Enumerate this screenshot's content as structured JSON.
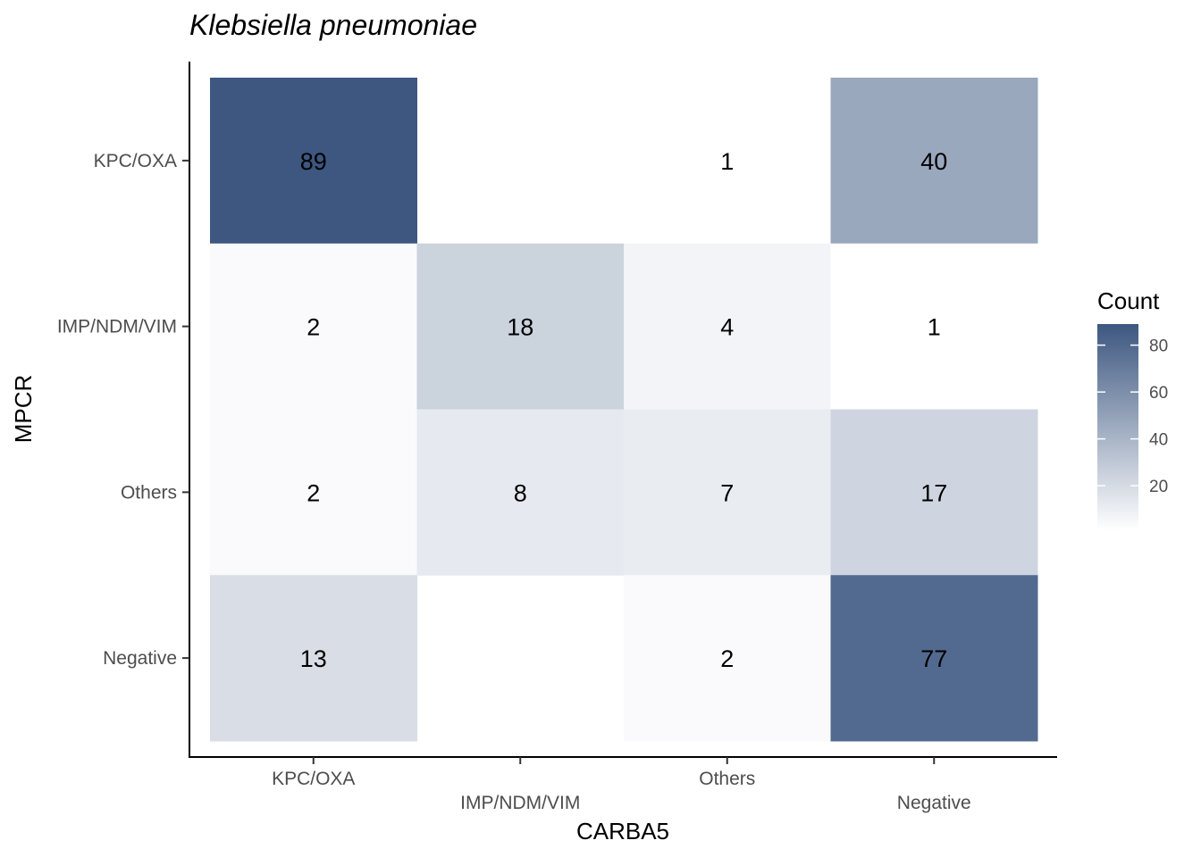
{
  "chart_data": {
    "type": "heatmap",
    "title": "Klebsiella pneumoniae",
    "xlabel": "CARBA5",
    "ylabel": "MPCR",
    "x_categories": [
      "KPC/OXA",
      "IMP/NDM/VIM",
      "Others",
      "Negative"
    ],
    "y_categories": [
      "KPC/OXA",
      "IMP/NDM/VIM",
      "Others",
      "Negative"
    ],
    "cells": [
      {
        "x": "KPC/OXA",
        "y": "KPC/OXA",
        "value": 89
      },
      {
        "x": "Others",
        "y": "KPC/OXA",
        "value": 1
      },
      {
        "x": "Negative",
        "y": "KPC/OXA",
        "value": 40
      },
      {
        "x": "KPC/OXA",
        "y": "IMP/NDM/VIM",
        "value": 2
      },
      {
        "x": "IMP/NDM/VIM",
        "y": "IMP/NDM/VIM",
        "value": 18
      },
      {
        "x": "Others",
        "y": "IMP/NDM/VIM",
        "value": 4
      },
      {
        "x": "Negative",
        "y": "IMP/NDM/VIM",
        "value": 1
      },
      {
        "x": "KPC/OXA",
        "y": "Others",
        "value": 2
      },
      {
        "x": "IMP/NDM/VIM",
        "y": "Others",
        "value": 8
      },
      {
        "x": "Others",
        "y": "Others",
        "value": 7
      },
      {
        "x": "Negative",
        "y": "Others",
        "value": 17
      },
      {
        "x": "KPC/OXA",
        "y": "Negative",
        "value": 13
      },
      {
        "x": "Others",
        "y": "Negative",
        "value": 2
      },
      {
        "x": "Negative",
        "y": "Negative",
        "value": 77
      }
    ],
    "legend": {
      "title": "Count",
      "placement": "right",
      "breaks": [
        20,
        40,
        60,
        80
      ],
      "range": [
        1,
        89
      ],
      "low_color": "#ffffff",
      "high_color": "#3f5a84"
    },
    "grid": false
  }
}
